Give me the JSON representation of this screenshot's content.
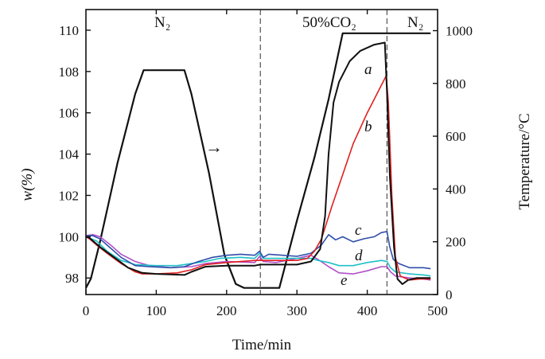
{
  "chart_data": {
    "type": "line",
    "xlabel": "Time/min",
    "ylabel_left": "w(%)",
    "ylabel_right": "Temperature/°C",
    "xlim": [
      0,
      500
    ],
    "ylim_left": [
      97.2,
      111.0
    ],
    "ylim_right": [
      0,
      1080
    ],
    "x_ticks": [
      0,
      100,
      200,
      300,
      400,
      500
    ],
    "y_left_ticks": [
      98,
      100,
      102,
      104,
      106,
      108,
      110
    ],
    "y_right_ticks": [
      0,
      200,
      400,
      600,
      800,
      1000
    ],
    "annotations": {
      "region_1": "N₂",
      "region_2": "50%CO₂",
      "region_3": "N₂",
      "arrow_label": "→"
    },
    "dividers_x": [
      248,
      428
    ],
    "temperature": {
      "name": "Temperature",
      "color": "#111111",
      "axis": "right",
      "points": [
        [
          0,
          25
        ],
        [
          7,
          60
        ],
        [
          20,
          200
        ],
        [
          45,
          500
        ],
        [
          70,
          760
        ],
        [
          82,
          850
        ],
        [
          140,
          850
        ],
        [
          150,
          760
        ],
        [
          175,
          460
        ],
        [
          197,
          150
        ],
        [
          213,
          40
        ],
        [
          225,
          25
        ],
        [
          275,
          25
        ],
        [
          300,
          280
        ],
        [
          325,
          520
        ],
        [
          345,
          740
        ],
        [
          365,
          990
        ],
        [
          440,
          990
        ],
        [
          490,
          990
        ]
      ]
    },
    "series": [
      {
        "name": "a",
        "color": "#111111",
        "points": [
          [
            0,
            100.0
          ],
          [
            5,
            99.95
          ],
          [
            10,
            99.8
          ],
          [
            20,
            99.5
          ],
          [
            40,
            99.0
          ],
          [
            60,
            98.5
          ],
          [
            80,
            98.25
          ],
          [
            100,
            98.2
          ],
          [
            140,
            98.15
          ],
          [
            150,
            98.3
          ],
          [
            170,
            98.55
          ],
          [
            200,
            98.6
          ],
          [
            240,
            98.6
          ],
          [
            248,
            98.65
          ],
          [
            260,
            98.65
          ],
          [
            280,
            98.65
          ],
          [
            300,
            98.65
          ],
          [
            320,
            98.8
          ],
          [
            333,
            99.4
          ],
          [
            340,
            101.0
          ],
          [
            345,
            104.0
          ],
          [
            352,
            106.5
          ],
          [
            360,
            107.5
          ],
          [
            375,
            108.5
          ],
          [
            390,
            109.0
          ],
          [
            410,
            109.3
          ],
          [
            425,
            109.4
          ],
          [
            428,
            107.0
          ],
          [
            432,
            103.0
          ],
          [
            438,
            99.5
          ],
          [
            443,
            97.95
          ],
          [
            450,
            97.7
          ],
          [
            458,
            97.9
          ],
          [
            470,
            98.0
          ],
          [
            490,
            98.0
          ]
        ]
      },
      {
        "name": "b",
        "color": "#e02020",
        "points": [
          [
            0,
            100.0
          ],
          [
            5,
            99.9
          ],
          [
            15,
            99.6
          ],
          [
            30,
            99.2
          ],
          [
            50,
            98.7
          ],
          [
            70,
            98.3
          ],
          [
            80,
            98.2
          ],
          [
            100,
            98.2
          ],
          [
            130,
            98.25
          ],
          [
            150,
            98.4
          ],
          [
            170,
            98.65
          ],
          [
            200,
            98.75
          ],
          [
            240,
            98.85
          ],
          [
            248,
            98.85
          ],
          [
            270,
            98.85
          ],
          [
            300,
            98.85
          ],
          [
            315,
            98.95
          ],
          [
            325,
            99.3
          ],
          [
            335,
            99.9
          ],
          [
            350,
            101.5
          ],
          [
            365,
            103.0
          ],
          [
            380,
            104.5
          ],
          [
            400,
            106.0
          ],
          [
            415,
            107.0
          ],
          [
            427,
            107.8
          ],
          [
            430,
            106.5
          ],
          [
            435,
            102.0
          ],
          [
            440,
            99.0
          ],
          [
            447,
            98.1
          ],
          [
            460,
            97.9
          ],
          [
            475,
            97.95
          ],
          [
            490,
            97.95
          ]
        ]
      },
      {
        "name": "c",
        "color": "#2f4faa",
        "points": [
          [
            0,
            100.05
          ],
          [
            10,
            100.05
          ],
          [
            20,
            99.9
          ],
          [
            35,
            99.45
          ],
          [
            50,
            99.0
          ],
          [
            70,
            98.6
          ],
          [
            90,
            98.55
          ],
          [
            120,
            98.5
          ],
          [
            140,
            98.55
          ],
          [
            160,
            98.8
          ],
          [
            180,
            99.0
          ],
          [
            200,
            99.1
          ],
          [
            220,
            99.15
          ],
          [
            240,
            99.1
          ],
          [
            247,
            99.3
          ],
          [
            252,
            99.0
          ],
          [
            260,
            99.15
          ],
          [
            280,
            99.1
          ],
          [
            300,
            99.05
          ],
          [
            320,
            99.2
          ],
          [
            335,
            99.6
          ],
          [
            345,
            100.1
          ],
          [
            355,
            99.85
          ],
          [
            365,
            100.0
          ],
          [
            380,
            99.75
          ],
          [
            395,
            99.9
          ],
          [
            410,
            100.0
          ],
          [
            420,
            100.2
          ],
          [
            428,
            100.25
          ],
          [
            432,
            99.5
          ],
          [
            437,
            98.9
          ],
          [
            445,
            98.7
          ],
          [
            460,
            98.5
          ],
          [
            480,
            98.5
          ],
          [
            490,
            98.45
          ]
        ]
      },
      {
        "name": "d",
        "color": "#20c0c8",
        "points": [
          [
            0,
            100.0
          ],
          [
            15,
            99.8
          ],
          [
            30,
            99.3
          ],
          [
            50,
            98.85
          ],
          [
            70,
            98.65
          ],
          [
            100,
            98.6
          ],
          [
            130,
            98.6
          ],
          [
            150,
            98.7
          ],
          [
            170,
            98.8
          ],
          [
            190,
            98.95
          ],
          [
            220,
            99.0
          ],
          [
            240,
            98.95
          ],
          [
            247,
            99.2
          ],
          [
            252,
            98.95
          ],
          [
            270,
            98.95
          ],
          [
            300,
            98.95
          ],
          [
            320,
            98.95
          ],
          [
            330,
            98.85
          ],
          [
            345,
            98.75
          ],
          [
            360,
            98.6
          ],
          [
            380,
            98.6
          ],
          [
            400,
            98.75
          ],
          [
            420,
            98.85
          ],
          [
            428,
            98.8
          ],
          [
            433,
            98.5
          ],
          [
            440,
            98.3
          ],
          [
            460,
            98.2
          ],
          [
            480,
            98.15
          ],
          [
            490,
            98.1
          ]
        ]
      },
      {
        "name": "e",
        "color": "#b050c8",
        "points": [
          [
            0,
            100.05
          ],
          [
            10,
            100.1
          ],
          [
            20,
            100.0
          ],
          [
            35,
            99.6
          ],
          [
            50,
            99.15
          ],
          [
            70,
            98.8
          ],
          [
            90,
            98.6
          ],
          [
            120,
            98.5
          ],
          [
            150,
            98.55
          ],
          [
            170,
            98.7
          ],
          [
            200,
            98.8
          ],
          [
            240,
            98.75
          ],
          [
            247,
            99.05
          ],
          [
            252,
            98.8
          ],
          [
            270,
            98.75
          ],
          [
            300,
            98.95
          ],
          [
            320,
            99.1
          ],
          [
            330,
            98.9
          ],
          [
            345,
            98.55
          ],
          [
            360,
            98.25
          ],
          [
            380,
            98.2
          ],
          [
            400,
            98.35
          ],
          [
            420,
            98.55
          ],
          [
            428,
            98.55
          ],
          [
            433,
            98.3
          ],
          [
            440,
            98.1
          ],
          [
            460,
            98.0
          ],
          [
            480,
            97.95
          ],
          [
            490,
            97.9
          ]
        ]
      }
    ],
    "curve_labels": [
      "a",
      "b",
      "c",
      "d",
      "e"
    ]
  }
}
